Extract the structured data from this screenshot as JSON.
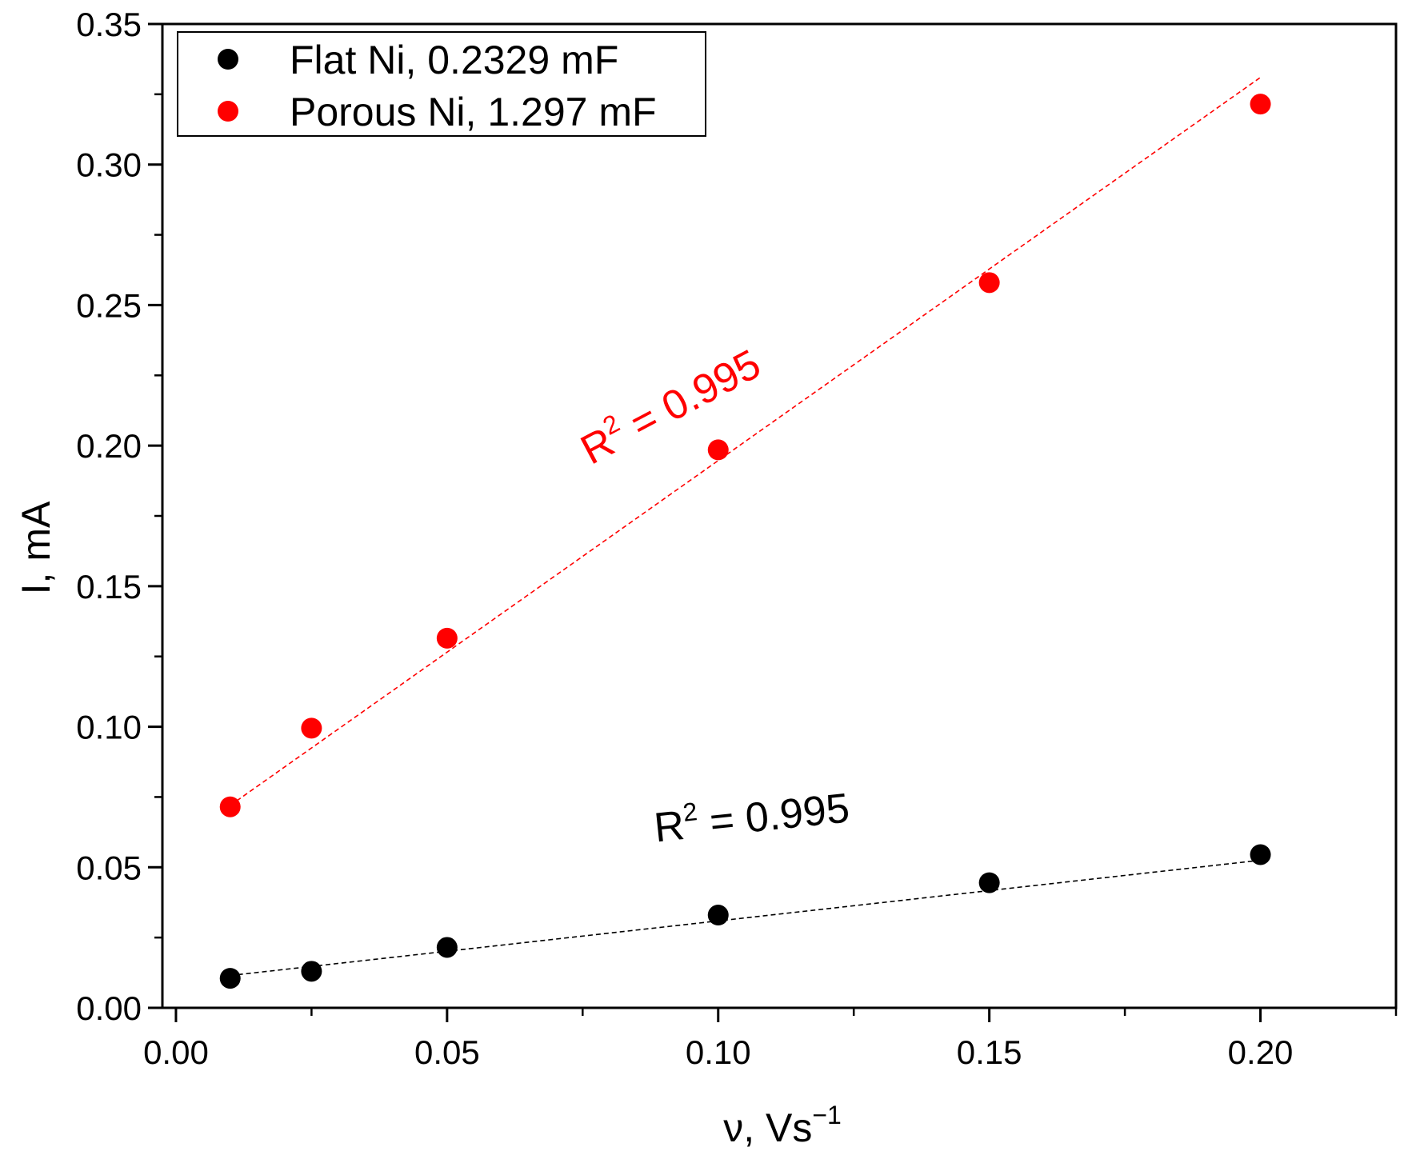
{
  "chart_data": {
    "type": "scatter",
    "title": "",
    "xlabel_main": "ν, Vs",
    "xlabel_sup": "−1",
    "ylabel": "I, mA",
    "xlim": [
      -0.0025,
      0.225
    ],
    "ylim": [
      0.0,
      0.35
    ],
    "xticks": [
      0.0,
      0.05,
      0.1,
      0.15,
      0.2
    ],
    "xtick_labels": [
      "0.00",
      "0.05",
      "0.10",
      "0.15",
      "0.20"
    ],
    "yticks": [
      0.0,
      0.05,
      0.1,
      0.15,
      0.2,
      0.25,
      0.3,
      0.35
    ],
    "ytick_labels": [
      "0.00",
      "0.05",
      "0.10",
      "0.15",
      "0.20",
      "0.25",
      "0.30",
      "0.35"
    ],
    "grid": false,
    "legend_position": "top-left",
    "series": [
      {
        "name": "Flat Ni, 0.2329 mF",
        "color": "#000000",
        "x": [
          0.01,
          0.025,
          0.05,
          0.1,
          0.15,
          0.2
        ],
        "y": [
          0.0105,
          0.013,
          0.0215,
          0.033,
          0.0445,
          0.0545
        ],
        "fit": {
          "x": [
            0.01,
            0.2
          ],
          "y": [
            0.0115,
            0.0525
          ]
        },
        "annotation": {
          "prefix": "R",
          "sup": "2",
          "suffix": " = 0.995",
          "at": [
            0.0885,
            0.059
          ],
          "rotation_deg": -6
        }
      },
      {
        "name": "Porous Ni, 1.297 mF",
        "color": "#ff0000",
        "x": [
          0.01,
          0.025,
          0.05,
          0.1,
          0.15,
          0.2
        ],
        "y": [
          0.0715,
          0.0995,
          0.1315,
          0.1985,
          0.258,
          0.3215
        ],
        "fit": {
          "x": [
            0.01,
            0.2
          ],
          "y": [
            0.072,
            0.331
          ]
        },
        "annotation": {
          "prefix": "R",
          "sup": "2",
          "suffix": " = 0.995",
          "at": [
            0.0765,
            0.193
          ],
          "rotation_deg": -28
        }
      }
    ]
  }
}
